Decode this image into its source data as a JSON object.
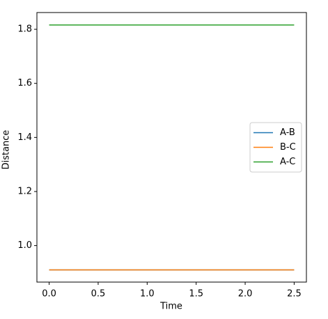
{
  "chart_data": {
    "type": "line",
    "xlabel": "Time",
    "ylabel": "Distance",
    "x": [
      0,
      2.5
    ],
    "series": [
      {
        "name": "A-B",
        "color": "#1f77b4",
        "values": [
          0.91,
          0.91
        ]
      },
      {
        "name": "B-C",
        "color": "#ff7f0e",
        "values": [
          0.91,
          0.91
        ]
      },
      {
        "name": "A-C",
        "color": "#2ca02c",
        "values": [
          1.816,
          1.816
        ]
      }
    ],
    "xlim": [
      -0.125,
      2.625
    ],
    "xticks": [
      {
        "value": 0,
        "label": "0.0"
      },
      0.5,
      {
        "value": 1,
        "label": "1.0"
      },
      1.5,
      {
        "value": 2,
        "label": "2.0"
      },
      2.5
    ],
    "ylim": [
      0.865,
      1.862
    ],
    "yticks": [
      {
        "value": 1,
        "label": "1.0"
      },
      1.2,
      1.4,
      1.6,
      1.8
    ],
    "legend": "center right"
  }
}
